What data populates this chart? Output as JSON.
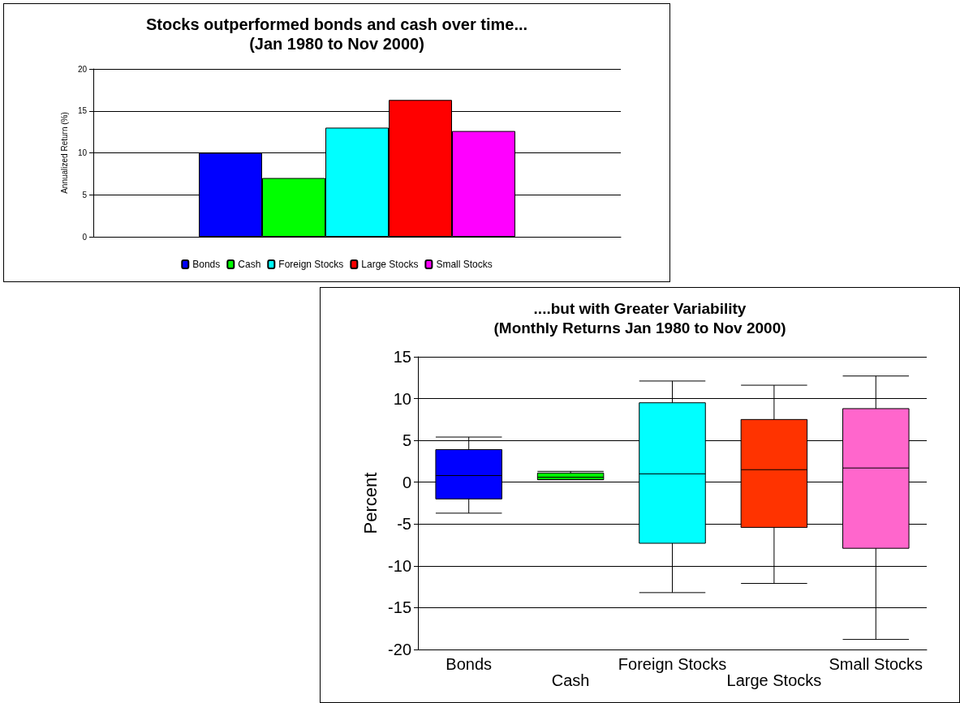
{
  "chart_data": [
    {
      "type": "bar",
      "title": "Stocks outperformed bonds and cash over time...\n(Jan 1980 to Nov 2000)",
      "ylabel": "Annualized Return (%)",
      "categories": [
        null
      ],
      "series": [
        {
          "name": "Bonds",
          "color": "#0000ff",
          "values": [
            10
          ]
        },
        {
          "name": "Cash",
          "color": "#00ff00",
          "values": [
            7
          ]
        },
        {
          "name": "Foreign Stocks",
          "color": "#00ffff",
          "values": [
            13
          ]
        },
        {
          "name": "Large Stocks",
          "color": "#ff0000",
          "values": [
            16.3
          ]
        },
        {
          "name": "Small Stocks",
          "color": "#ff00ff",
          "values": [
            12.6
          ]
        }
      ],
      "ylim": [
        0,
        20
      ],
      "yticks": [
        0,
        5,
        10,
        15,
        20
      ],
      "grid": "y",
      "legend": "bottom"
    },
    {
      "type": "box",
      "title": "....but with Greater Variability\n(Monthly Returns Jan 1980 to Nov 2000)",
      "ylabel": "Percent",
      "categories": [
        "Bonds",
        "Cash",
        "Foreign Stocks",
        "Large Stocks",
        "Small Stocks"
      ],
      "colors": [
        "#0000ff",
        "#00ff00",
        "#00ffff",
        "#ff3300",
        "#ff66cc"
      ],
      "boxes": [
        {
          "low": -3.7,
          "q1": -2.0,
          "median": 0.8,
          "q3": 3.9,
          "high": 5.4
        },
        {
          "low": 0.3,
          "q1": 0.3,
          "median": 0.6,
          "q3": 1.1,
          "high": 1.3
        },
        {
          "low": -13.2,
          "q1": -7.3,
          "median": 1.0,
          "q3": 9.5,
          "high": 12.1
        },
        {
          "low": -12.1,
          "q1": -5.4,
          "median": 1.5,
          "q3": 7.5,
          "high": 11.6
        },
        {
          "low": -18.8,
          "q1": -7.9,
          "median": 1.7,
          "q3": 8.8,
          "high": 12.7
        }
      ],
      "ylim": [
        -20,
        15
      ],
      "yticks": [
        -20,
        -15,
        -10,
        -5,
        0,
        5,
        10,
        15
      ],
      "grid": "y"
    }
  ]
}
